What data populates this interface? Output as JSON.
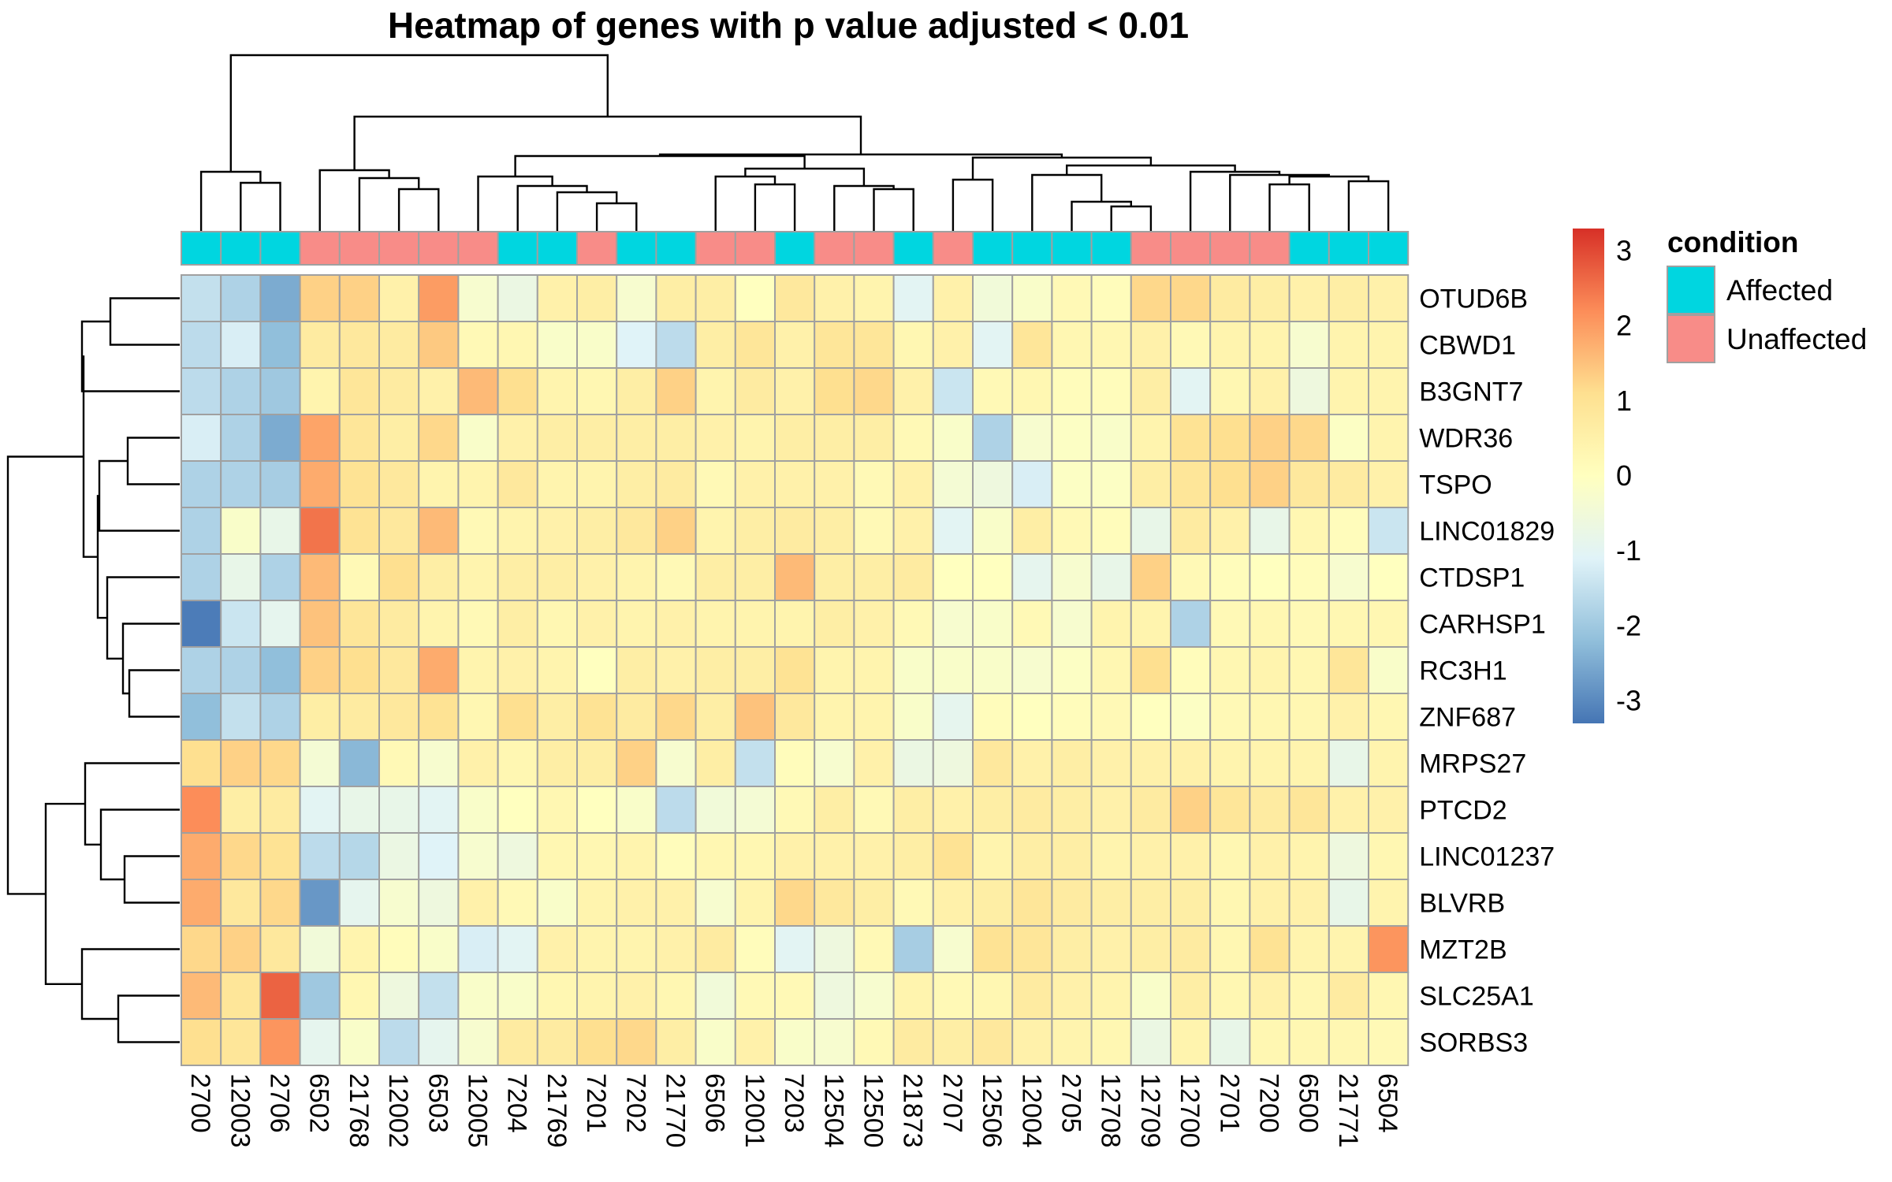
{
  "chart_data": {
    "type": "heatmap",
    "title": "Heatmap of genes with p value adjusted < 0.01",
    "columns": [
      "2700",
      "12003",
      "2706",
      "6502",
      "21768",
      "12002",
      "6503",
      "12005",
      "7204",
      "21769",
      "7201",
      "7202",
      "21770",
      "6506",
      "12001",
      "7203",
      "12504",
      "12500",
      "21873",
      "2707",
      "12506",
      "12004",
      "2705",
      "12708",
      "12709",
      "12700",
      "2701",
      "7200",
      "6500",
      "21771",
      "6504"
    ],
    "column_condition": [
      "Affected",
      "Affected",
      "Affected",
      "Unaffected",
      "Unaffected",
      "Unaffected",
      "Unaffected",
      "Unaffected",
      "Affected",
      "Affected",
      "Unaffected",
      "Affected",
      "Affected",
      "Unaffected",
      "Unaffected",
      "Affected",
      "Unaffected",
      "Unaffected",
      "Affected",
      "Unaffected",
      "Affected",
      "Affected",
      "Affected",
      "Affected",
      "Unaffected",
      "Unaffected",
      "Unaffected",
      "Unaffected",
      "Affected",
      "Affected",
      "Affected"
    ],
    "rows": [
      "OTUD6B",
      "CBWD1",
      "B3GNT7",
      "WDR36",
      "TSPO",
      "LINC01829",
      "CTDSP1",
      "CARHSP1",
      "RC3H1",
      "ZNF687",
      "MRPS27",
      "PTCD2",
      "LINC01237",
      "BLVRB",
      "MZT2B",
      "SLC25A1",
      "SORBS3"
    ],
    "values": [
      [
        -1.5,
        -1.8,
        -2.5,
        1.3,
        1.3,
        0.5,
        2.0,
        -0.3,
        -0.7,
        0.5,
        0.6,
        -0.3,
        0.6,
        0.6,
        0.0,
        0.8,
        0.5,
        0.4,
        -1.0,
        0.5,
        -0.5,
        -0.2,
        0.2,
        0.1,
        1.2,
        1.2,
        0.7,
        0.6,
        0.5,
        0.6,
        0.5
      ],
      [
        -1.6,
        -1.2,
        -2.2,
        0.7,
        0.8,
        0.7,
        1.4,
        0.2,
        0.3,
        -0.2,
        -0.2,
        -1.1,
        -1.6,
        0.6,
        0.9,
        0.5,
        0.9,
        0.9,
        0.3,
        0.5,
        -1.0,
        0.9,
        0.3,
        0.3,
        0.5,
        0.2,
        0.4,
        0.4,
        -0.3,
        0.4,
        0.4
      ],
      [
        -1.6,
        -1.8,
        -2.0,
        0.4,
        0.9,
        0.7,
        0.5,
        1.6,
        1.1,
        0.4,
        0.3,
        0.6,
        1.3,
        0.4,
        0.7,
        0.5,
        1.1,
        1.2,
        0.5,
        -1.4,
        0.2,
        0.3,
        0.1,
        0.1,
        0.6,
        -1.0,
        0.3,
        0.5,
        -0.6,
        0.4,
        0.4
      ],
      [
        -1.2,
        -1.8,
        -2.5,
        1.9,
        0.9,
        0.6,
        1.2,
        -0.2,
        0.5,
        0.6,
        0.6,
        0.6,
        0.6,
        0.5,
        0.4,
        0.6,
        0.6,
        0.6,
        0.2,
        -0.2,
        -1.8,
        -0.3,
        -0.1,
        -0.2,
        0.4,
        1.0,
        1.1,
        1.3,
        1.2,
        -0.1,
        0.4
      ],
      [
        -1.8,
        -1.8,
        -1.9,
        1.8,
        1.0,
        0.8,
        0.4,
        0.4,
        0.8,
        0.4,
        0.4,
        0.6,
        0.7,
        0.2,
        0.5,
        0.5,
        0.5,
        0.2,
        0.5,
        -0.4,
        -0.6,
        -1.2,
        -0.1,
        -0.1,
        0.6,
        0.9,
        1.1,
        1.3,
        0.8,
        0.7,
        0.5
      ],
      [
        -1.8,
        -0.2,
        -0.8,
        2.5,
        1.0,
        0.8,
        1.6,
        0.2,
        0.4,
        0.5,
        0.6,
        0.8,
        1.3,
        0.4,
        0.6,
        0.7,
        0.6,
        0.2,
        0.5,
        -1.0,
        -0.2,
        0.6,
        0.2,
        0.1,
        -0.8,
        0.7,
        0.5,
        -0.8,
        0.3,
        0.1,
        -1.4
      ],
      [
        -1.8,
        -0.8,
        -1.8,
        1.6,
        0.2,
        1.1,
        0.6,
        0.4,
        0.6,
        0.6,
        0.5,
        0.4,
        0.2,
        0.6,
        0.6,
        1.6,
        0.6,
        0.6,
        0.7,
        0.0,
        0.0,
        -0.9,
        -0.3,
        -0.8,
        1.3,
        0.2,
        0.1,
        0.0,
        0.1,
        -0.3,
        0.0
      ],
      [
        -3.2,
        -1.4,
        -0.9,
        1.5,
        0.9,
        0.7,
        0.4,
        0.2,
        0.6,
        0.3,
        0.5,
        0.4,
        0.5,
        0.4,
        0.4,
        0.4,
        0.6,
        0.5,
        0.2,
        -0.3,
        -0.2,
        0.2,
        -0.3,
        0.4,
        0.4,
        -1.8,
        0.2,
        0.3,
        0.2,
        0.3,
        0.3
      ],
      [
        -1.8,
        -1.8,
        -2.2,
        1.3,
        1.1,
        0.8,
        1.8,
        0.4,
        0.5,
        0.4,
        0.0,
        0.6,
        0.5,
        0.6,
        0.6,
        1.0,
        0.4,
        0.4,
        -0.2,
        -0.2,
        -0.2,
        -0.3,
        -0.1,
        0.3,
        1.1,
        0.1,
        0.3,
        0.4,
        0.3,
        0.9,
        -0.2
      ],
      [
        -2.2,
        -1.5,
        -1.8,
        0.6,
        0.7,
        0.8,
        1.0,
        0.3,
        1.1,
        0.6,
        1.0,
        0.7,
        1.2,
        0.6,
        1.5,
        0.8,
        0.4,
        0.4,
        -0.2,
        -0.9,
        0.1,
        0.0,
        0.1,
        0.2,
        0.0,
        -0.1,
        0.2,
        0.3,
        0.3,
        0.5,
        0.3
      ],
      [
        1.1,
        1.3,
        1.2,
        -0.4,
        -2.3,
        0.2,
        -0.3,
        0.5,
        0.3,
        0.6,
        0.6,
        1.3,
        -0.3,
        0.6,
        -1.5,
        0.1,
        -0.3,
        0.5,
        -0.7,
        -0.6,
        0.8,
        0.5,
        0.6,
        0.5,
        0.5,
        0.5,
        0.4,
        0.4,
        0.4,
        -0.8,
        0.4
      ],
      [
        2.2,
        0.6,
        0.7,
        -1.0,
        -0.8,
        -0.8,
        -1.0,
        -0.2,
        0.0,
        0.3,
        0.0,
        -0.2,
        -1.6,
        -0.5,
        -0.4,
        0.2,
        0.6,
        0.2,
        0.6,
        0.5,
        0.6,
        0.7,
        0.6,
        0.5,
        0.7,
        1.3,
        0.9,
        0.7,
        0.9,
        0.5,
        0.5
      ],
      [
        1.8,
        1.2,
        1.0,
        -1.6,
        -1.7,
        -0.7,
        -1.1,
        -0.3,
        -0.6,
        0.3,
        0.3,
        0.4,
        0.1,
        0.3,
        0.3,
        0.5,
        0.5,
        0.5,
        0.6,
        1.0,
        0.4,
        0.6,
        0.6,
        0.4,
        0.5,
        0.5,
        0.3,
        0.5,
        0.4,
        -0.6,
        0.3
      ],
      [
        1.8,
        0.8,
        1.2,
        -2.8,
        -0.9,
        -0.3,
        -0.6,
        0.5,
        0.2,
        -0.2,
        0.4,
        0.5,
        0.5,
        -0.3,
        0.4,
        1.2,
        0.8,
        0.6,
        0.2,
        0.5,
        0.6,
        0.9,
        0.7,
        0.6,
        0.6,
        0.6,
        0.3,
        0.5,
        0.5,
        -0.8,
        0.4
      ],
      [
        1.2,
        1.3,
        0.8,
        -0.5,
        0.4,
        0.1,
        -0.2,
        -1.2,
        -1.0,
        0.5,
        0.4,
        0.4,
        0.5,
        0.7,
        0.1,
        -1.0,
        -0.6,
        0.2,
        -1.9,
        -0.3,
        1.0,
        0.9,
        0.6,
        0.5,
        0.6,
        0.7,
        0.3,
        1.0,
        0.4,
        0.4,
        2.1
      ],
      [
        1.6,
        0.9,
        2.7,
        -2.0,
        0.3,
        -0.6,
        -1.5,
        -0.2,
        -0.2,
        0.3,
        0.4,
        0.5,
        0.3,
        -0.5,
        0.2,
        0.2,
        -0.6,
        -0.3,
        0.4,
        0.2,
        0.3,
        0.7,
        0.5,
        0.4,
        -0.2,
        0.6,
        0.3,
        0.5,
        0.3,
        0.7,
        0.3
      ],
      [
        1.1,
        0.9,
        2.1,
        -0.9,
        -0.2,
        -1.6,
        -0.9,
        -0.3,
        0.7,
        0.7,
        1.1,
        1.2,
        0.6,
        -0.2,
        0.5,
        -0.2,
        -0.3,
        0.2,
        0.7,
        0.6,
        0.8,
        0.5,
        0.4,
        0.3,
        -0.7,
        0.4,
        -0.8,
        0.3,
        0.3,
        0.3,
        0.2
      ]
    ],
    "color_scale": {
      "min": -3.3,
      "max": 3.3,
      "stops": [
        "#4575B4",
        "#91BFDB",
        "#E0F3F8",
        "#FFFFBF",
        "#FEE090",
        "#FC8D59",
        "#D73027"
      ],
      "ticks": [
        3,
        2,
        1,
        0,
        -1,
        -2,
        -3
      ]
    },
    "legend": {
      "title": "condition",
      "entries": [
        {
          "label": "Affected",
          "color": "#00D6E0"
        },
        {
          "label": "Unaffected",
          "color": "#F88C88"
        }
      ]
    },
    "grid": true,
    "cell_border_color": "#A0A0A0"
  }
}
